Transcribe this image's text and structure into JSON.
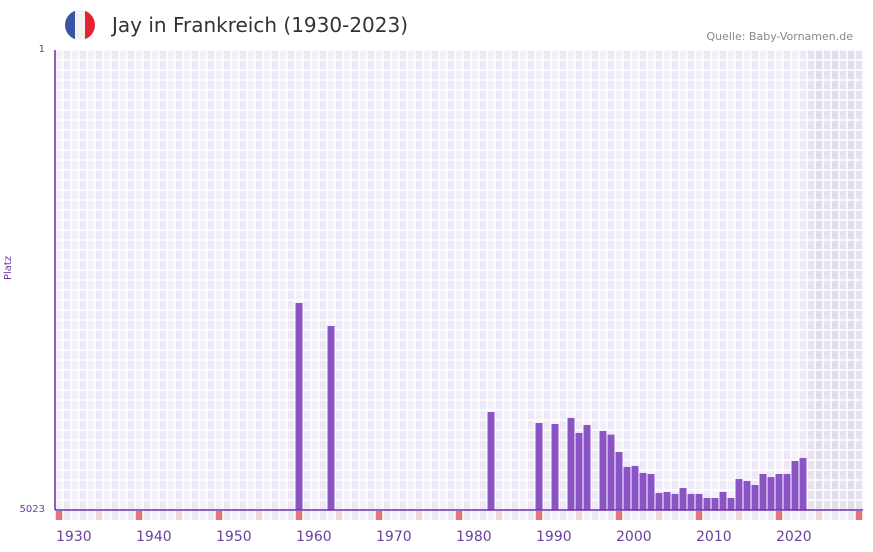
{
  "header": {
    "title": "Jay in Frankreich (1930-2023)",
    "source": "Quelle: Baby-Vornamen.de",
    "flag_colors": [
      "#3a55a4",
      "#f2f2f2",
      "#e52330"
    ]
  },
  "chart_data": {
    "type": "bar",
    "title": "Jay in Frankreich (1930-2023)",
    "xlabel": "",
    "ylabel": "Platz",
    "ylim": [
      5023,
      1
    ],
    "xlim": [
      1930,
      2030
    ],
    "y_tick_labels": [
      "1",
      "5023"
    ],
    "x_tick_labels": [
      "1930",
      "1940",
      "1950",
      "1960",
      "1970",
      "1980",
      "1990",
      "2000",
      "2010",
      "2020"
    ],
    "bar_color": "#8b54c6",
    "x": [
      1960,
      1964,
      1984,
      1990,
      1992,
      1994,
      1995,
      1996,
      1998,
      1999,
      2000,
      2001,
      2002,
      2003,
      2004,
      2005,
      2006,
      2007,
      2008,
      2009,
      2010,
      2011,
      2012,
      2013,
      2014,
      2015,
      2016,
      2017,
      2018,
      2019,
      2020,
      2021,
      2022,
      2023
    ],
    "values": [
      2763,
      3014,
      3953,
      4073,
      4084,
      4018,
      4182,
      4095,
      4160,
      4200,
      4390,
      4553,
      4542,
      4619,
      4630,
      4837,
      4826,
      4848,
      4783,
      4848,
      4848,
      4892,
      4892,
      4826,
      4892,
      4685,
      4706,
      4750,
      4630,
      4663,
      4630,
      4630,
      4488,
      4455
    ]
  }
}
